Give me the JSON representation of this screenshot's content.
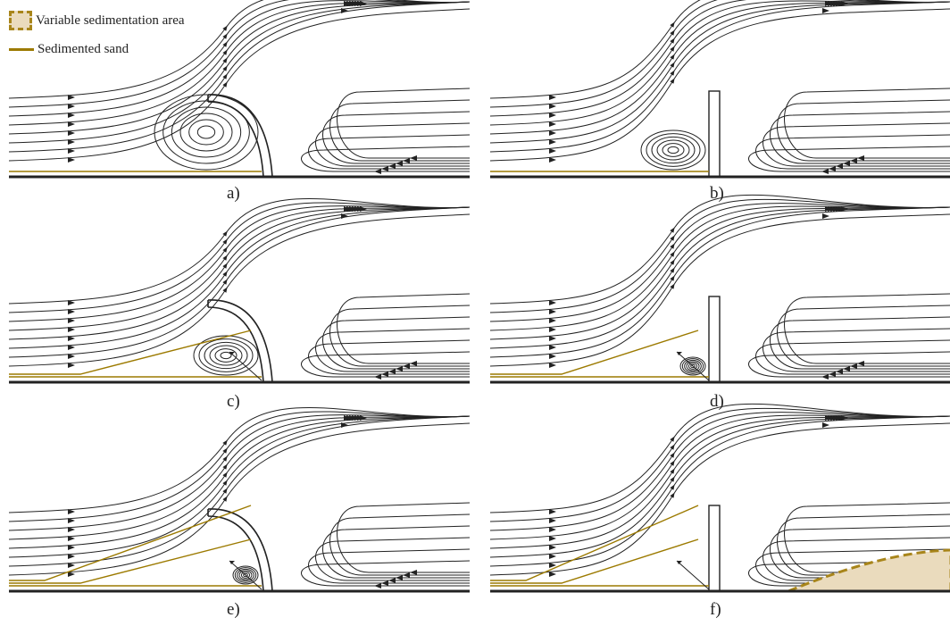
{
  "legend": {
    "variable_area": "Variable sedimentation area",
    "sedimented_sand": "Sedimented sand"
  },
  "panels": [
    {
      "label": "a)",
      "barrier": "curved",
      "fill_level": 0,
      "vortex_size": "large"
    },
    {
      "label": "b)",
      "barrier": "straight",
      "fill_level": 0,
      "vortex_size": "medium"
    },
    {
      "label": "c)",
      "barrier": "curved",
      "fill_level": 1,
      "vortex_size": "medium"
    },
    {
      "label": "d)",
      "barrier": "straight",
      "fill_level": 1,
      "vortex_size": "small"
    },
    {
      "label": "e)",
      "barrier": "curved",
      "fill_level": 2,
      "vortex_size": "small"
    },
    {
      "label": "f)",
      "barrier": "straight",
      "fill_level": 2,
      "vortex_size": "none"
    }
  ],
  "colors": {
    "streamline": "#222222",
    "sand": "#9c7a00",
    "variable_area_fill": "#eadbbd",
    "variable_area_border": "#a8851a",
    "ground": "#222222"
  }
}
